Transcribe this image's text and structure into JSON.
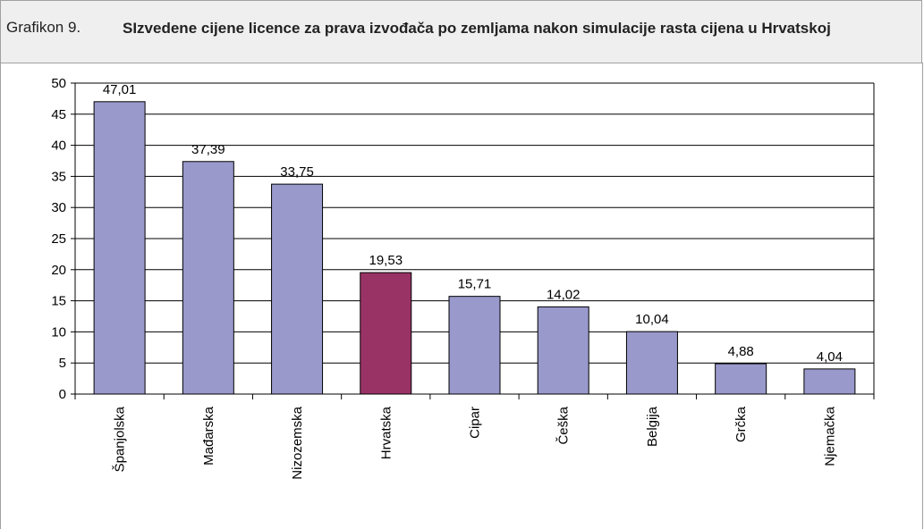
{
  "header": {
    "label": "Grafikon 9."
  },
  "chart_data": {
    "type": "bar",
    "title": "SIzvedene cijene licence za prava izvođača po zemljama nakon simulacije rasta cijena u Hrvatskoj",
    "categories": [
      "Španjolska",
      "Mađarska",
      "Nizozemska",
      "Hrvatska",
      "Cipar",
      "Češka",
      "Belgija",
      "Grčka",
      "Njemačka"
    ],
    "values": [
      47.01,
      37.39,
      33.75,
      19.53,
      15.71,
      14.02,
      10.04,
      4.88,
      4.04
    ],
    "value_labels": [
      "47,01",
      "37,39",
      "33,75",
      "19,53",
      "15,71",
      "14,02",
      "10,04",
      "4,88",
      "4,04"
    ],
    "colors": [
      "#9999cc",
      "#9999cc",
      "#9999cc",
      "#993366",
      "#9999cc",
      "#9999cc",
      "#9999cc",
      "#9999cc",
      "#9999cc"
    ],
    "ylim": [
      0,
      50
    ],
    "yticks": [
      0,
      5,
      10,
      15,
      20,
      25,
      30,
      35,
      40,
      45,
      50
    ],
    "grid": true
  }
}
